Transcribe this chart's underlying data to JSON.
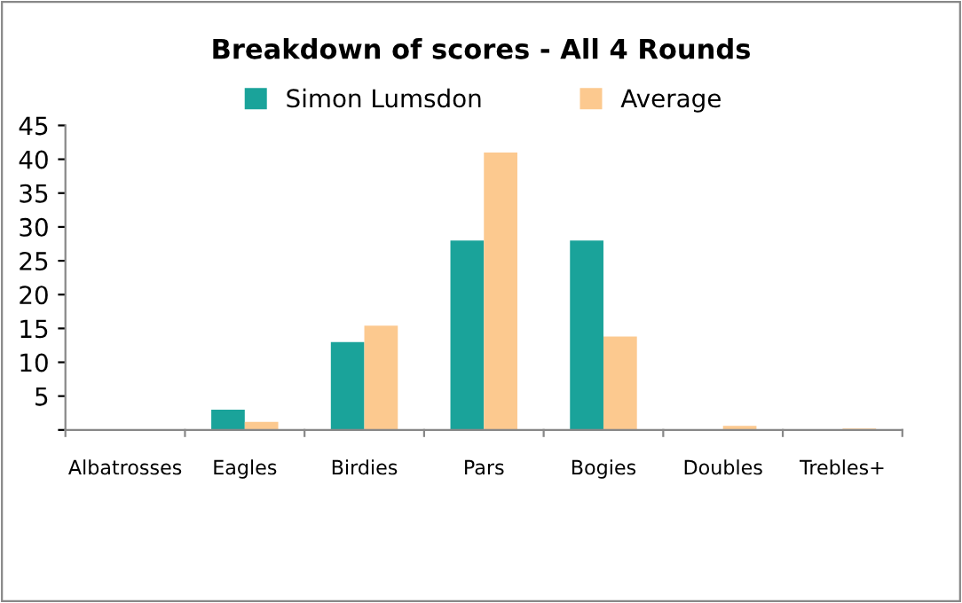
{
  "chart_data": {
    "type": "bar",
    "title": "Breakdown of scores - All 4 Rounds",
    "categories": [
      "Albatrosses",
      "Eagles",
      "Birdies",
      "Pars",
      "Bogies",
      "Doubles",
      "Trebles+"
    ],
    "series": [
      {
        "name": "Simon Lumsdon",
        "color": "#1aa39a",
        "values": [
          0,
          3,
          13,
          28,
          28,
          0,
          0
        ]
      },
      {
        "name": "Average",
        "color": "#fcc98f",
        "values": [
          0,
          1.2,
          15.4,
          41,
          13.8,
          0.6,
          0.2
        ]
      }
    ],
    "ylim": [
      0,
      45
    ],
    "yticks": [
      {
        "value": 0,
        "label": null
      },
      5,
      10,
      15,
      20,
      25,
      30,
      35,
      40,
      45
    ],
    "grid": false,
    "legend": "top"
  }
}
